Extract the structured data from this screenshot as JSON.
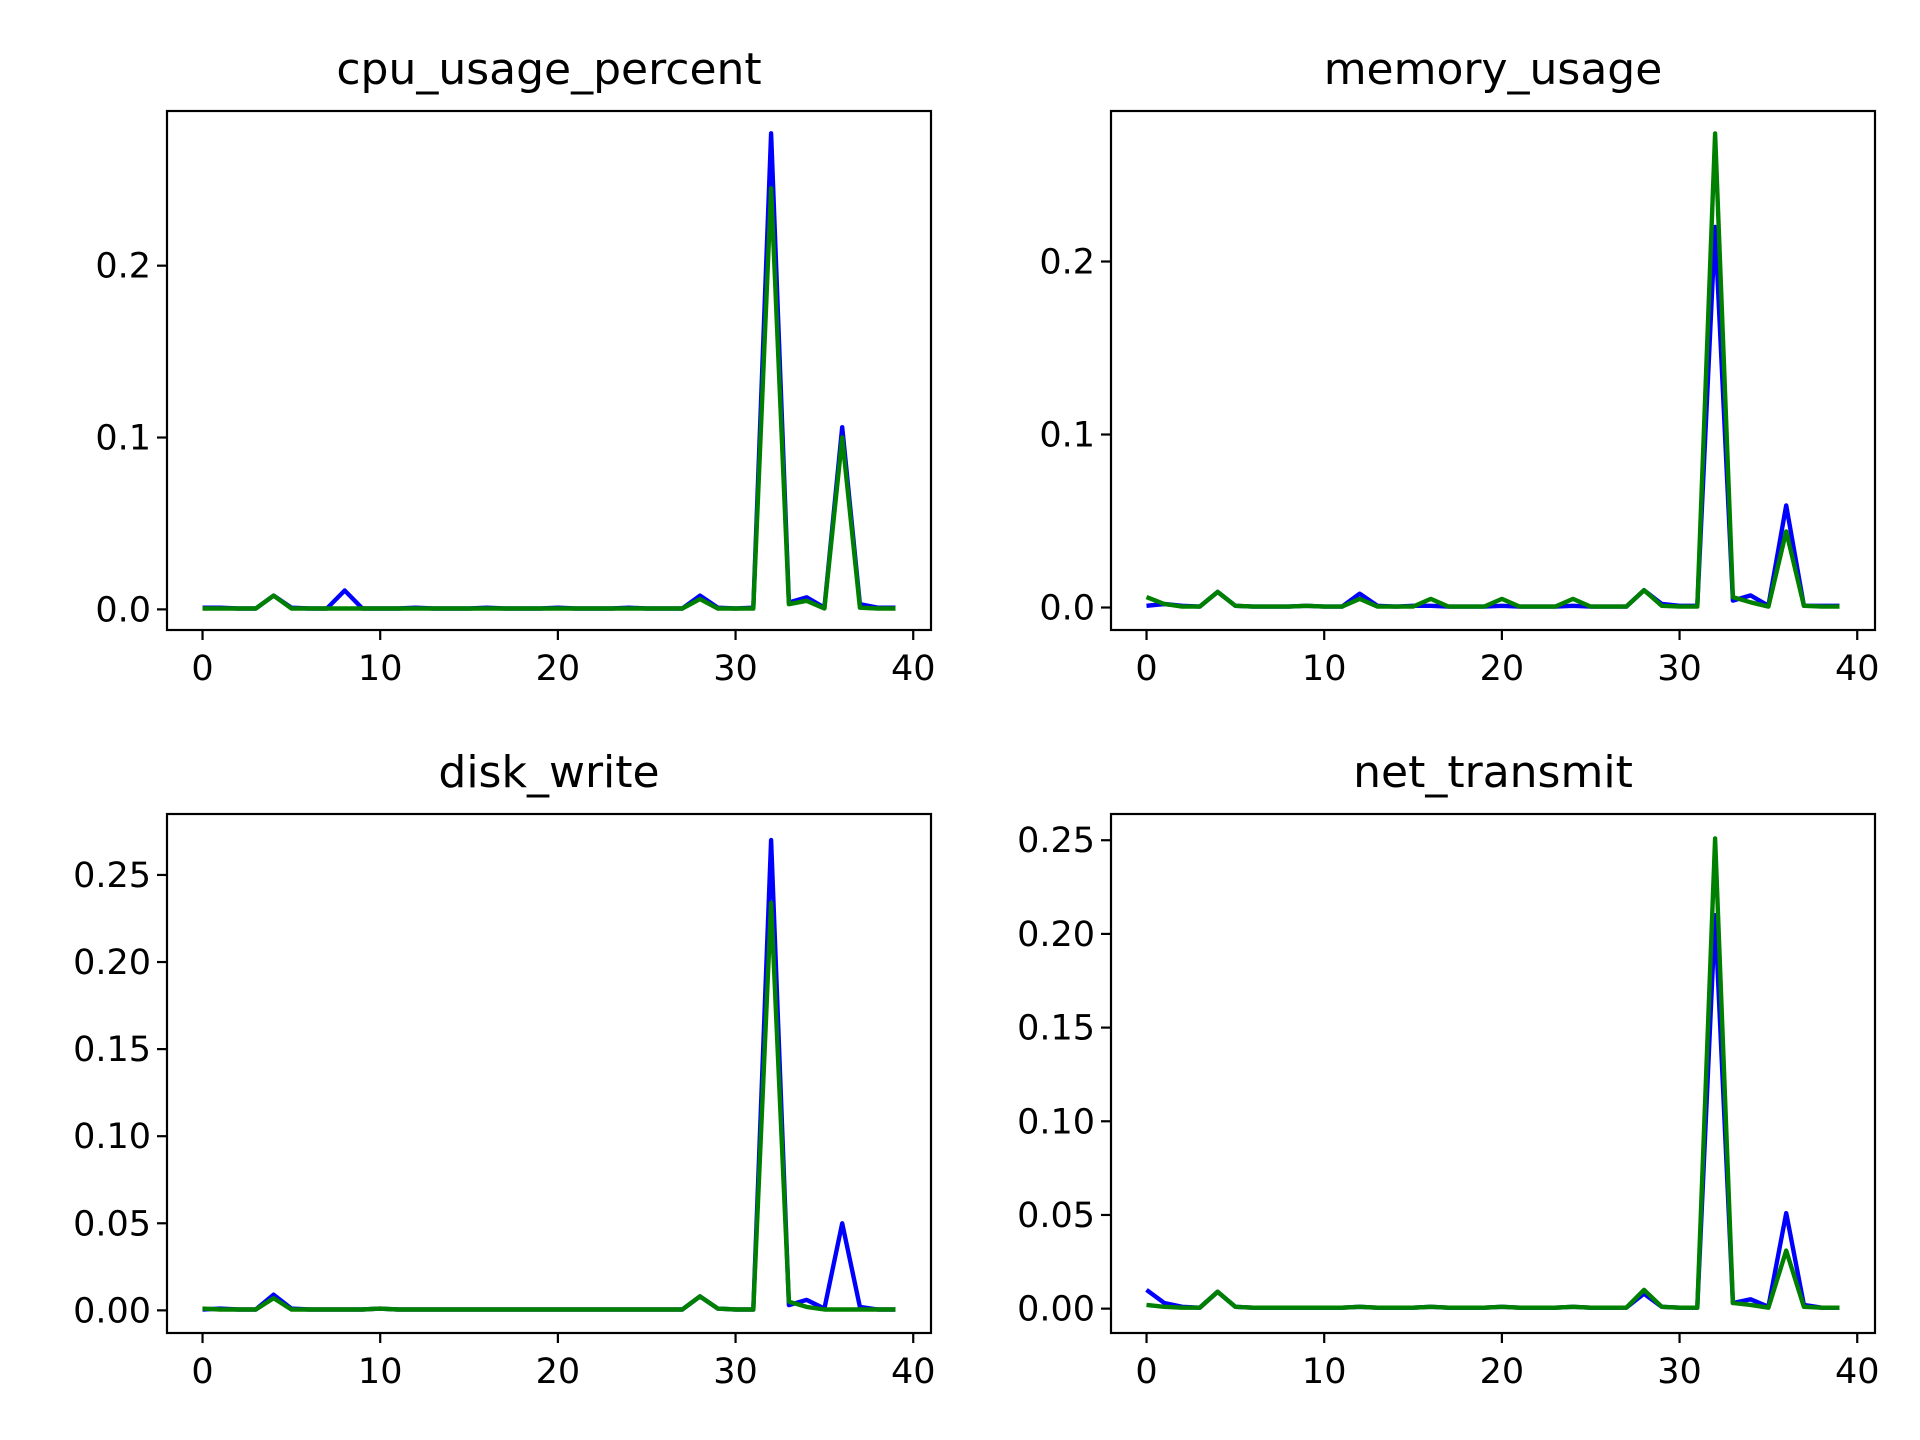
{
  "chart_data": [
    {
      "type": "line",
      "title": "cpu_usage_percent",
      "xlim": [
        -2,
        41
      ],
      "ylim": [
        -0.012,
        0.29
      ],
      "xticks": [
        0,
        10,
        20,
        30,
        40
      ],
      "xtick_labels": [
        "0",
        "10",
        "20",
        "30",
        "40"
      ],
      "yticks": [
        0,
        0.1,
        0.2
      ],
      "ytick_labels": [
        "0.0",
        "0.1",
        "0.2"
      ],
      "series": [
        {
          "color": "#0000ff",
          "values": [
            0.001,
            0.001,
            0.0005,
            0.0005,
            0.008,
            0.001,
            0.0005,
            0.0005,
            0.011,
            0.0005,
            0.0005,
            0.0005,
            0.001,
            0.0005,
            0.0005,
            0.0005,
            0.001,
            0.0005,
            0.0005,
            0.0005,
            0.001,
            0.0005,
            0.0005,
            0.0005,
            0.001,
            0.0005,
            0.0005,
            0.0005,
            0.008,
            0.001,
            0.0005,
            0.001,
            0.277,
            0.004,
            0.007,
            0.001,
            0.106,
            0.003,
            0.001,
            0.001
          ]
        },
        {
          "color": "#008000",
          "values": [
            0.0005,
            0.0005,
            0.0005,
            0.0005,
            0.008,
            0.0005,
            0.0005,
            0.0005,
            0.0005,
            0.0005,
            0.0005,
            0.0005,
            0.0005,
            0.0005,
            0.0005,
            0.0005,
            0.0005,
            0.0005,
            0.0005,
            0.0005,
            0.0005,
            0.0005,
            0.0005,
            0.0005,
            0.0005,
            0.0005,
            0.0005,
            0.0005,
            0.006,
            0.0005,
            0.0005,
            0.0005,
            0.245,
            0.003,
            0.005,
            0.0005,
            0.1,
            0.001,
            0.0005,
            0.0005
          ]
        }
      ]
    },
    {
      "type": "line",
      "title": "memory_usage",
      "xlim": [
        -2,
        41
      ],
      "ylim": [
        -0.013,
        0.287
      ],
      "xticks": [
        0,
        10,
        20,
        30,
        40
      ],
      "xtick_labels": [
        "0",
        "10",
        "20",
        "30",
        "40"
      ],
      "yticks": [
        0,
        0.1,
        0.2
      ],
      "ytick_labels": [
        "0.0",
        "0.1",
        "0.2"
      ],
      "series": [
        {
          "color": "#0000ff",
          "values": [
            0.001,
            0.002,
            0.001,
            0.0005,
            0.009,
            0.001,
            0.0005,
            0.0005,
            0.0005,
            0.001,
            0.0005,
            0.0005,
            0.008,
            0.001,
            0.0005,
            0.001,
            0.001,
            0.0005,
            0.0005,
            0.0005,
            0.001,
            0.0005,
            0.0005,
            0.0005,
            0.001,
            0.0005,
            0.0005,
            0.0005,
            0.01,
            0.002,
            0.001,
            0.001,
            0.22,
            0.004,
            0.007,
            0.001,
            0.059,
            0.001,
            0.001,
            0.001
          ]
        },
        {
          "color": "#008000",
          "values": [
            0.006,
            0.002,
            0.0005,
            0.0005,
            0.009,
            0.001,
            0.0005,
            0.0005,
            0.0005,
            0.001,
            0.0005,
            0.0005,
            0.005,
            0.0005,
            0.0005,
            0.0005,
            0.005,
            0.0005,
            0.0005,
            0.0005,
            0.005,
            0.0005,
            0.0005,
            0.0005,
            0.005,
            0.0005,
            0.0005,
            0.0005,
            0.01,
            0.001,
            0.0005,
            0.0005,
            0.274,
            0.006,
            0.003,
            0.0005,
            0.044,
            0.001,
            0.0005,
            0.0005
          ]
        }
      ]
    },
    {
      "type": "line",
      "title": "disk_write",
      "xlim": [
        -2,
        41
      ],
      "ylim": [
        -0.013,
        0.285
      ],
      "xticks": [
        0,
        10,
        20,
        30,
        40
      ],
      "xtick_labels": [
        "0",
        "10",
        "20",
        "30",
        "40"
      ],
      "yticks": [
        0,
        0.05,
        0.1,
        0.15,
        0.2,
        0.25
      ],
      "ytick_labels": [
        "0.00",
        "0.05",
        "0.10",
        "0.15",
        "0.20",
        "0.25"
      ],
      "series": [
        {
          "color": "#0000ff",
          "values": [
            0.0005,
            0.001,
            0.0005,
            0.0005,
            0.009,
            0.001,
            0.0005,
            0.0005,
            0.0005,
            0.0005,
            0.001,
            0.0005,
            0.0005,
            0.0005,
            0.0005,
            0.0005,
            0.0005,
            0.0005,
            0.0005,
            0.0005,
            0.0005,
            0.0005,
            0.0005,
            0.0005,
            0.0005,
            0.0005,
            0.0005,
            0.0005,
            0.008,
            0.001,
            0.0005,
            0.0005,
            0.27,
            0.003,
            0.006,
            0.001,
            0.05,
            0.002,
            0.0005,
            0.0005
          ]
        },
        {
          "color": "#008000",
          "values": [
            0.001,
            0.0005,
            0.0005,
            0.0005,
            0.007,
            0.0005,
            0.0005,
            0.0005,
            0.0005,
            0.0005,
            0.001,
            0.0005,
            0.0005,
            0.0005,
            0.0005,
            0.0005,
            0.0005,
            0.0005,
            0.0005,
            0.0005,
            0.0005,
            0.0005,
            0.0005,
            0.0005,
            0.0005,
            0.0005,
            0.0005,
            0.0005,
            0.008,
            0.001,
            0.0005,
            0.0005,
            0.234,
            0.005,
            0.002,
            0.0005,
            0.0005,
            0.0005,
            0.0005,
            0.0005
          ]
        }
      ]
    },
    {
      "type": "line",
      "title": "net_transmit",
      "xlim": [
        -2,
        41
      ],
      "ylim": [
        -0.013,
        0.264
      ],
      "xticks": [
        0,
        10,
        20,
        30,
        40
      ],
      "xtick_labels": [
        "0",
        "10",
        "20",
        "30",
        "40"
      ],
      "yticks": [
        0,
        0.05,
        0.1,
        0.15,
        0.2,
        0.25
      ],
      "ytick_labels": [
        "0.00",
        "0.05",
        "0.10",
        "0.15",
        "0.20",
        "0.25"
      ],
      "series": [
        {
          "color": "#0000ff",
          "values": [
            0.01,
            0.003,
            0.001,
            0.0005,
            0.009,
            0.001,
            0.0005,
            0.0005,
            0.0005,
            0.0005,
            0.0005,
            0.0005,
            0.001,
            0.0005,
            0.0005,
            0.0005,
            0.001,
            0.0005,
            0.0005,
            0.0005,
            0.001,
            0.0005,
            0.0005,
            0.0005,
            0.001,
            0.0005,
            0.0005,
            0.0005,
            0.008,
            0.001,
            0.0005,
            0.0005,
            0.21,
            0.003,
            0.005,
            0.001,
            0.051,
            0.002,
            0.0005,
            0.0005
          ]
        },
        {
          "color": "#008000",
          "values": [
            0.002,
            0.001,
            0.0005,
            0.0005,
            0.009,
            0.001,
            0.0005,
            0.0005,
            0.0005,
            0.0005,
            0.0005,
            0.0005,
            0.001,
            0.0005,
            0.0005,
            0.0005,
            0.001,
            0.0005,
            0.0005,
            0.0005,
            0.001,
            0.0005,
            0.0005,
            0.0005,
            0.001,
            0.0005,
            0.0005,
            0.0005,
            0.01,
            0.001,
            0.0005,
            0.0005,
            0.251,
            0.003,
            0.002,
            0.0005,
            0.031,
            0.001,
            0.0005,
            0.0005
          ]
        }
      ]
    }
  ]
}
